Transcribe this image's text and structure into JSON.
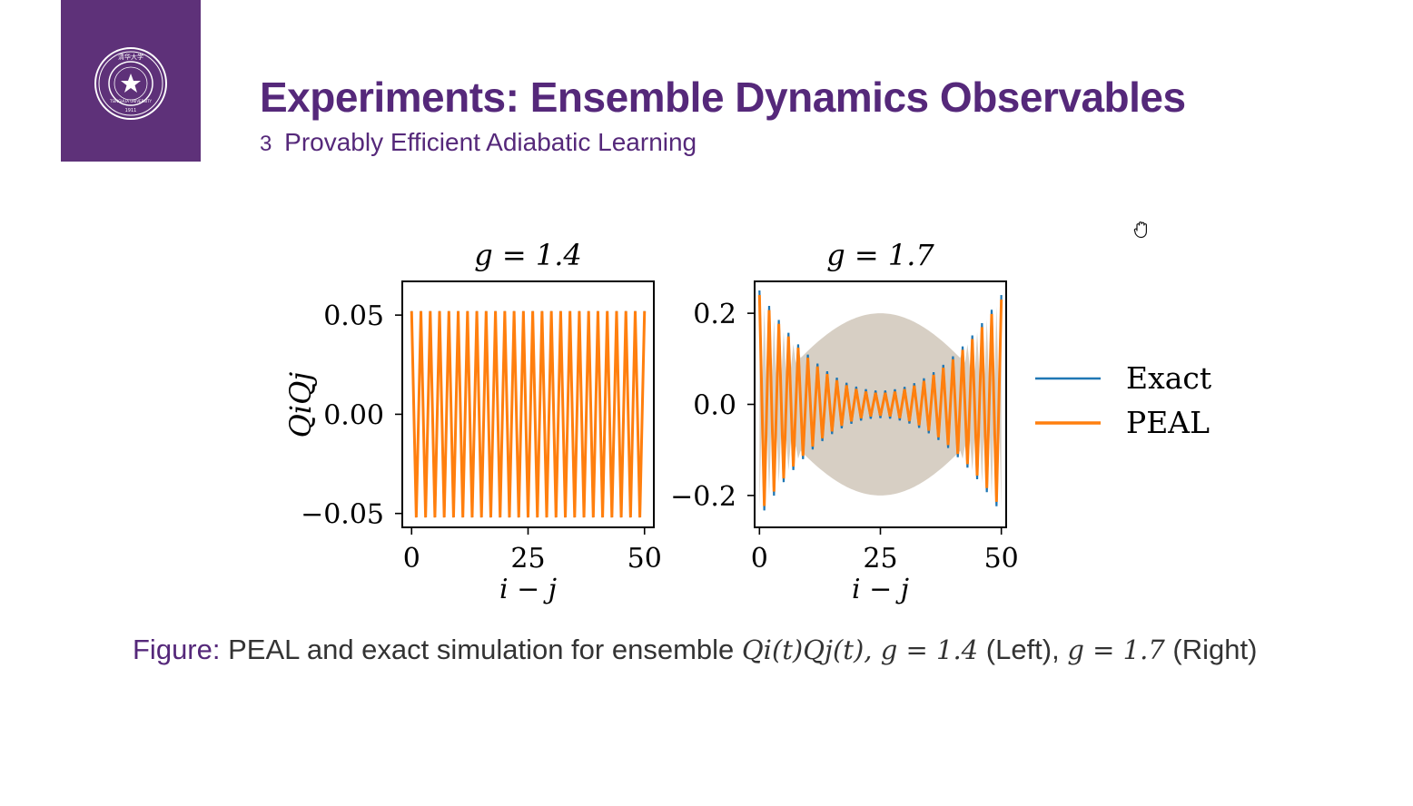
{
  "slide": {
    "title": "Experiments:  Ensemble Dynamics Observables",
    "section_number": "3",
    "section_title": "Provably Efficient Adiabatic Learning",
    "accent_color": "#55287a",
    "logo_text": "TSINGHUA UNIVERSITY",
    "logo_year": "1911",
    "logo_chinese": "清华大学"
  },
  "caption": {
    "label": "Figure:",
    "text": "PEAL and exact simulation for ensemble",
    "math_expr": "Qi(t)Qj(t), g = 1.4",
    "left_text": "(Left),",
    "math_g2": "g = 1.7",
    "right_text": "(Right)"
  },
  "chart_data": [
    {
      "type": "line",
      "title": "g = 1.4",
      "xlabel": "i − j",
      "ylabel": "QiQj",
      "xlim": [
        -2,
        52
      ],
      "ylim": [
        -0.057,
        0.067
      ],
      "xticks": [
        0,
        25,
        50
      ],
      "xtick_labels": [
        "0",
        "25",
        "50"
      ],
      "yticks": [
        -0.05,
        0.0,
        0.05
      ],
      "ytick_labels": [
        "−0.05",
        "0.00",
        "0.05"
      ],
      "x_start": 0,
      "x_end": 50,
      "x_step": 1,
      "series": [
        {
          "name": "Exact",
          "color": "#1f77b4",
          "pattern": "alternating",
          "amp_start": 0.052,
          "amp_mid": 0.052,
          "amp_end": 0.052
        },
        {
          "name": "PEAL",
          "color": "#ff7f0e",
          "pattern": "alternating",
          "amp_start": 0.052,
          "amp_mid": 0.052,
          "amp_end": 0.052
        }
      ],
      "band": null
    },
    {
      "type": "line",
      "title": "g = 1.7",
      "xlabel": "i − j",
      "ylabel": "",
      "xlim": [
        -1,
        51
      ],
      "ylim": [
        -0.27,
        0.27
      ],
      "xticks": [
        0,
        25,
        50
      ],
      "xtick_labels": [
        "0",
        "25",
        "50"
      ],
      "yticks": [
        -0.2,
        0.0,
        0.2
      ],
      "ytick_labels": [
        "−0.2",
        "0.0",
        "0.2"
      ],
      "x_start": 0,
      "x_end": 50,
      "x_step": 1,
      "series": [
        {
          "name": "Exact",
          "color": "#1f77b4",
          "pattern": "alternating",
          "amp_start": 0.25,
          "amp_mid": 0.03,
          "amp_end": 0.24
        },
        {
          "name": "PEAL",
          "color": "#ff7f0e",
          "pattern": "alternating",
          "amp_start": 0.24,
          "amp_mid": 0.025,
          "amp_end": 0.23
        }
      ],
      "band": {
        "color": "#c9bfb0",
        "opacity": 0.75,
        "amp_start": 0.0,
        "amp_mid": 0.2,
        "amp_end": 0.0,
        "spike": 0.23
      }
    }
  ],
  "legend": {
    "position": "right",
    "entries": [
      {
        "label": "Exact",
        "color": "#1f77b4"
      },
      {
        "label": "PEAL",
        "color": "#ff7f0e"
      }
    ]
  }
}
